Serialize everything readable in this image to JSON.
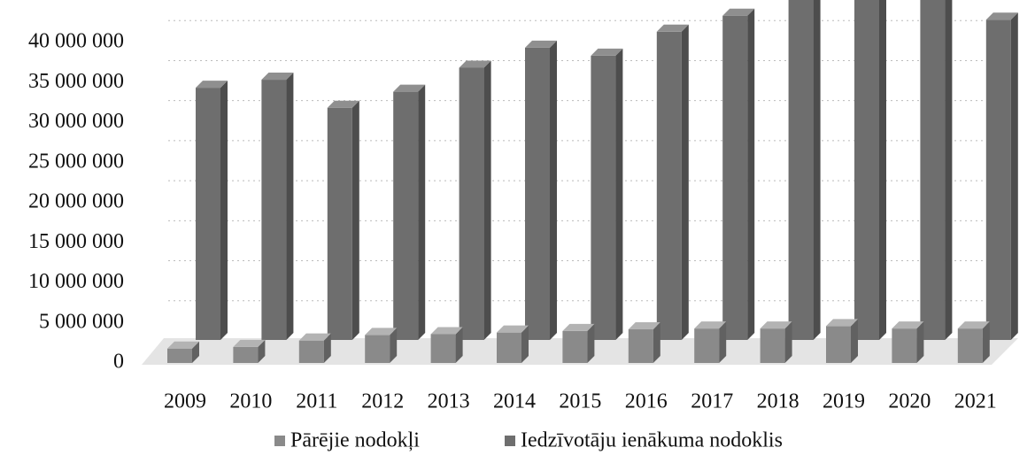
{
  "chart_data": {
    "type": "bar3d",
    "categories": [
      "2009",
      "2010",
      "2011",
      "2012",
      "2013",
      "2014",
      "2015",
      "2016",
      "2017",
      "2018",
      "2019",
      "2020",
      "2021"
    ],
    "series": [
      {
        "name": "Pārējie nodokļi",
        "color": "#8a8a8a",
        "values": [
          1800000,
          2000000,
          2800000,
          3500000,
          3600000,
          3800000,
          4000000,
          4200000,
          4300000,
          4300000,
          4600000,
          4300000,
          4300000
        ]
      },
      {
        "name": "Iedzīvotāju ienākuma nodoklis",
        "color": "#6e6e6e",
        "values": [
          31500000,
          32500000,
          29000000,
          31000000,
          34000000,
          36500000,
          35500000,
          38500000,
          40500000,
          43000000,
          42500000,
          43000000,
          40000000
        ]
      }
    ],
    "ylim": [
      0,
      45000000
    ],
    "yticks": [
      0,
      {
        "value": 5000000,
        "label": "5 000 000"
      },
      {
        "value": 10000000,
        "label": "10 000 000"
      },
      {
        "value": 15000000,
        "label": "15 000 000"
      },
      {
        "value": 20000000,
        "label": "20 000 000"
      },
      {
        "value": 25000000,
        "label": "25 000 000"
      },
      {
        "value": 30000000,
        "label": "30 000 000"
      },
      {
        "value": 35000000,
        "label": "35 000 000"
      },
      {
        "value": 40000000,
        "label": "40 000 000"
      }
    ],
    "grid": true,
    "legend": "bottom"
  }
}
